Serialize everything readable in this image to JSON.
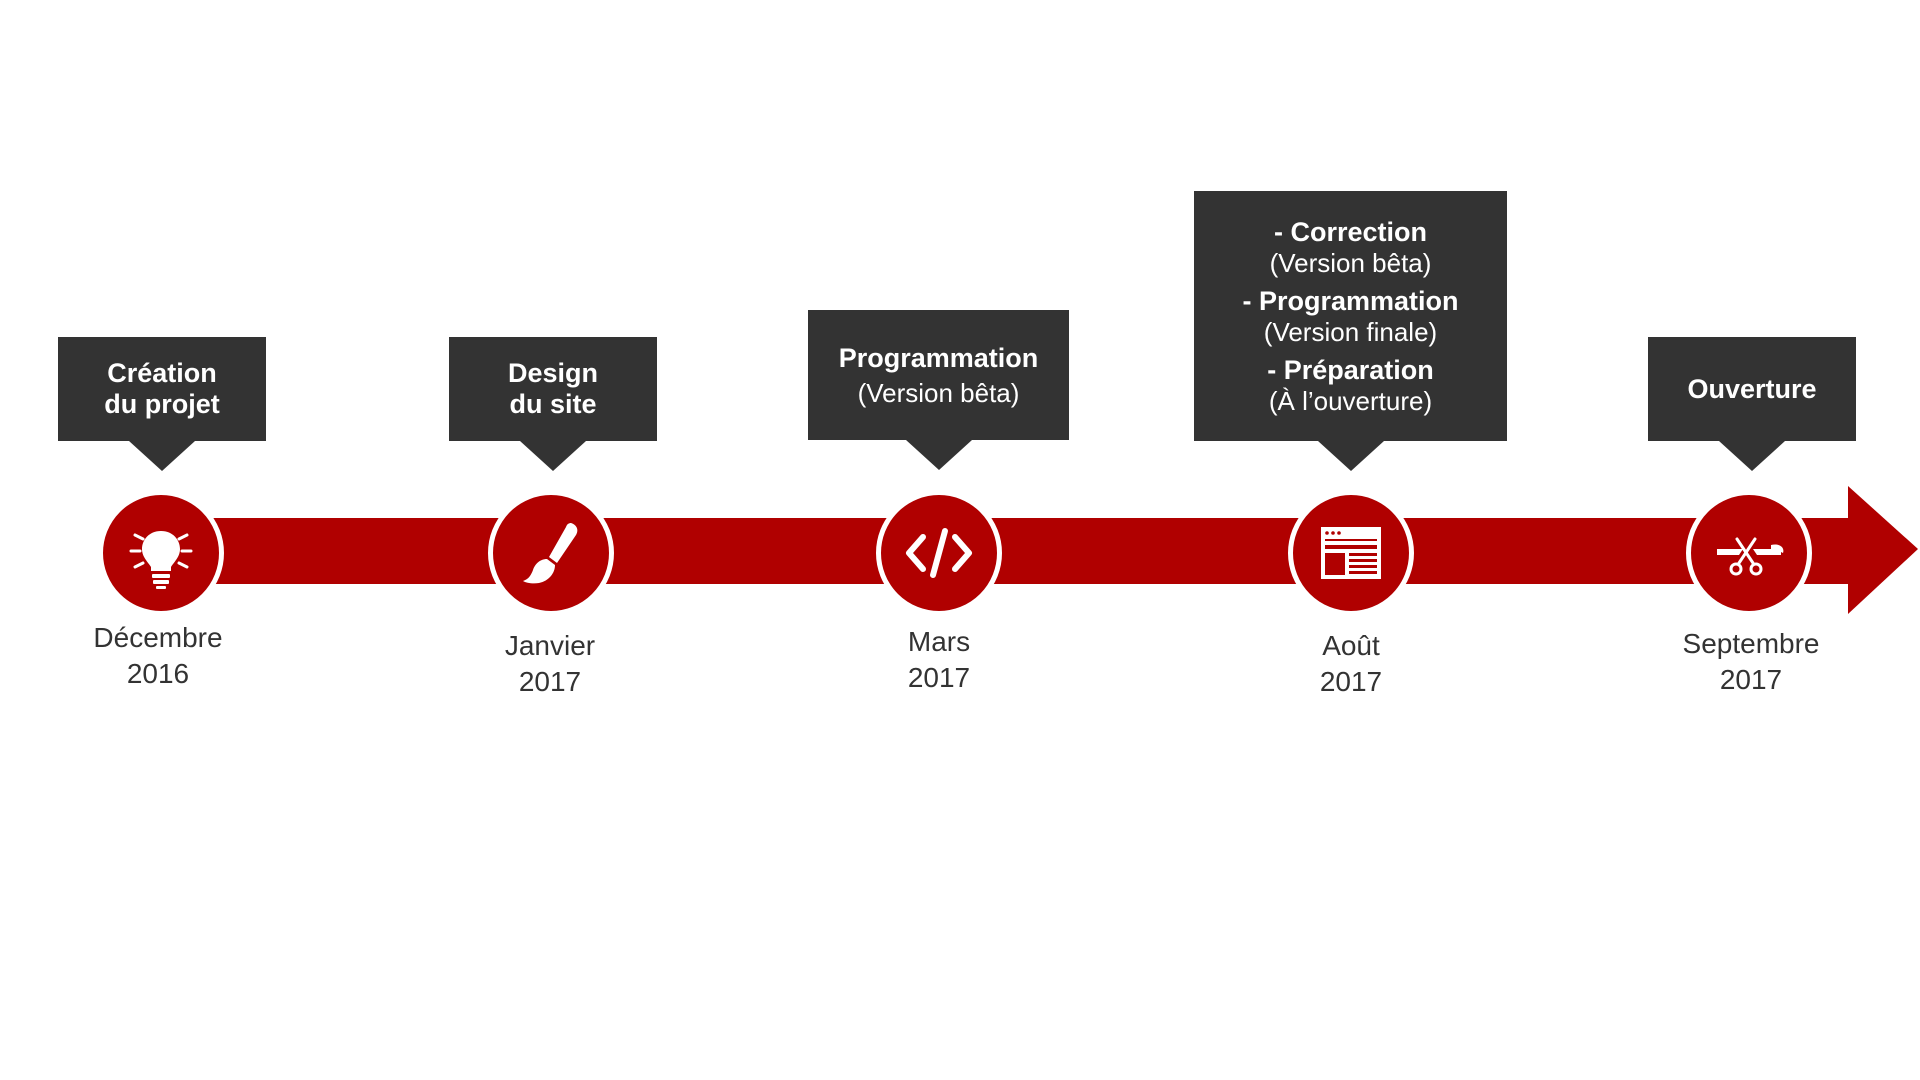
{
  "colors": {
    "arrow": "#b00000",
    "callout_bg": "#333333",
    "callout_text": "#ffffff",
    "date_text": "#333333"
  },
  "milestones": [
    {
      "icon": "lightbulb-icon",
      "callout": {
        "lines": [
          "Création",
          "du projet"
        ]
      },
      "date": {
        "month": "Décembre",
        "year": "2016"
      }
    },
    {
      "icon": "paintbrush-icon",
      "callout": {
        "lines": [
          "Design",
          "du site"
        ]
      },
      "date": {
        "month": "Janvier",
        "year": "2017"
      }
    },
    {
      "icon": "code-icon",
      "callout": {
        "title": "Programmation",
        "sub": "(Version bêta)"
      },
      "date": {
        "month": "Mars",
        "year": "2017"
      }
    },
    {
      "icon": "browser-window-icon",
      "callout": {
        "items": [
          {
            "title": "- Correction",
            "sub": "(Version bêta)"
          },
          {
            "title": "- Programmation",
            "sub": "(Version finale)"
          },
          {
            "title": "- Préparation",
            "sub": "(À l’ouverture)"
          }
        ]
      },
      "date": {
        "month": "Août",
        "year": "2017"
      }
    },
    {
      "icon": "ribbon-cutting-icon",
      "callout": {
        "lines": [
          "Ouverture"
        ]
      },
      "date": {
        "month": "Septembre",
        "year": "2017"
      }
    }
  ]
}
